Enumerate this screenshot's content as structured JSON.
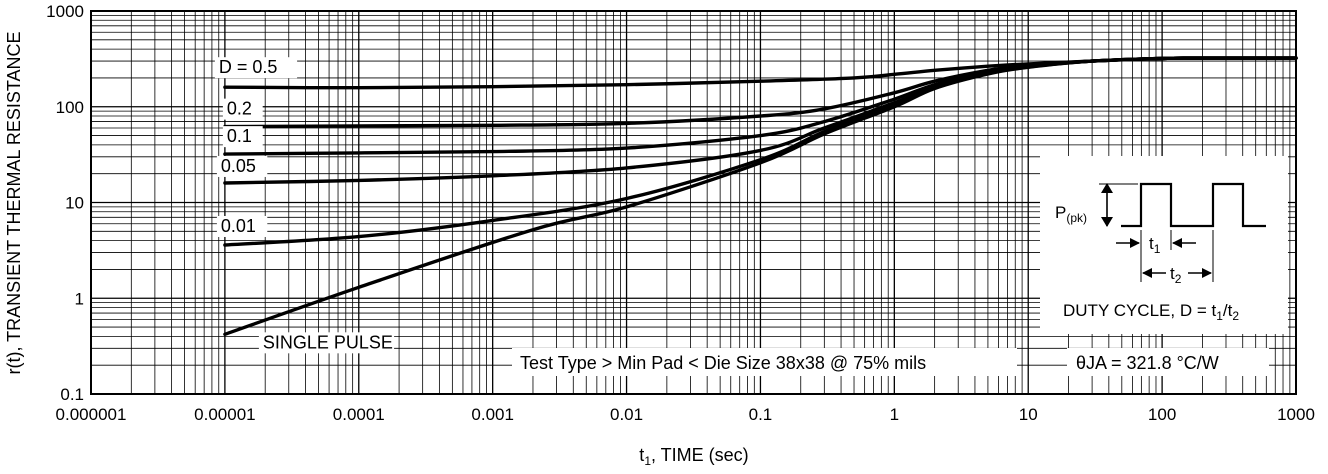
{
  "chart_data": {
    "type": "line",
    "x_scale": "log",
    "y_scale": "log",
    "xlim": [
      1e-06,
      1000
    ],
    "ylim": [
      0.1,
      1000
    ],
    "xlabel": "t1, TIME (sec)",
    "xlabel_main": "t",
    "xlabel_sub": "1",
    "xlabel_rest": ", TIME (sec)",
    "ylabel": "r(t), TRANSIENT THERMAL RESISTANCE",
    "x_ticks": [
      "0.000001",
      "0.00001",
      "0.0001",
      "0.001",
      "0.01",
      "0.1",
      "1",
      "10",
      "100",
      "1000"
    ],
    "y_ticks": [
      "0.1",
      "1",
      "10",
      "100",
      "1000"
    ],
    "grid": true,
    "series": [
      {
        "name": "D = 0.5",
        "label": "D = 0.5",
        "x": [
          1e-05,
          0.0001,
          0.001,
          0.01,
          0.1,
          0.5,
          1,
          2,
          5,
          10,
          30,
          100,
          200,
          1000
        ],
        "y": [
          160,
          158,
          162,
          170,
          185,
          200,
          218,
          240,
          265,
          280,
          300,
          320,
          322,
          322
        ]
      },
      {
        "name": "0.2",
        "label": "0.2",
        "x": [
          1e-05,
          0.0001,
          0.001,
          0.01,
          0.1,
          0.3,
          1,
          2,
          5,
          10,
          30,
          100,
          200,
          1000
        ],
        "y": [
          62,
          63,
          64,
          67,
          80,
          95,
          140,
          185,
          240,
          270,
          300,
          320,
          322,
          322
        ]
      },
      {
        "name": "0.1",
        "label": "0.1",
        "x": [
          1e-05,
          0.0001,
          0.001,
          0.01,
          0.1,
          0.3,
          1,
          2,
          5,
          10,
          30,
          100,
          200,
          1000
        ],
        "y": [
          32,
          33,
          34,
          37,
          50,
          70,
          120,
          170,
          230,
          265,
          300,
          320,
          322,
          322
        ]
      },
      {
        "name": "0.05",
        "label": "0.05",
        "x": [
          1e-05,
          0.0001,
          0.001,
          0.01,
          0.1,
          0.3,
          1,
          2,
          5,
          10,
          30,
          100,
          200,
          1000
        ],
        "y": [
          16,
          17,
          19,
          23,
          35,
          60,
          110,
          160,
          225,
          262,
          300,
          320,
          322,
          322
        ]
      },
      {
        "name": "0.01",
        "label": "0.01",
        "x": [
          1e-05,
          0.0001,
          0.001,
          0.01,
          0.1,
          0.3,
          1,
          2,
          5,
          10,
          30,
          100,
          200,
          1000
        ],
        "y": [
          3.6,
          4.4,
          6.5,
          11,
          28,
          55,
          105,
          158,
          222,
          260,
          300,
          320,
          322,
          322
        ]
      },
      {
        "name": "SINGLE PULSE",
        "label": "SINGLE PULSE",
        "x": [
          1e-05,
          0.0001,
          0.002,
          0.01,
          0.1,
          0.3,
          1,
          2,
          5,
          10,
          30,
          100,
          200,
          1000
        ],
        "y": [
          0.42,
          1.3,
          5.2,
          9,
          26,
          52,
          100,
          155,
          220,
          258,
          300,
          320,
          322,
          322
        ]
      }
    ],
    "annotations": {
      "test_type": "Test Type > Min Pad < Die Size 38x38 @ 75% mils",
      "theta_ja": "θJA = 321.8 °C/W"
    },
    "inset": {
      "p_main": "P",
      "p_sub": "(pk)",
      "t1_main": "t",
      "t1_sub": "1",
      "t2_main": "t",
      "t2_sub": "2",
      "duty_prefix": "DUTY CYCLE, D = t",
      "duty_sub1": "1",
      "duty_mid": "/t",
      "duty_sub2": "2"
    }
  }
}
